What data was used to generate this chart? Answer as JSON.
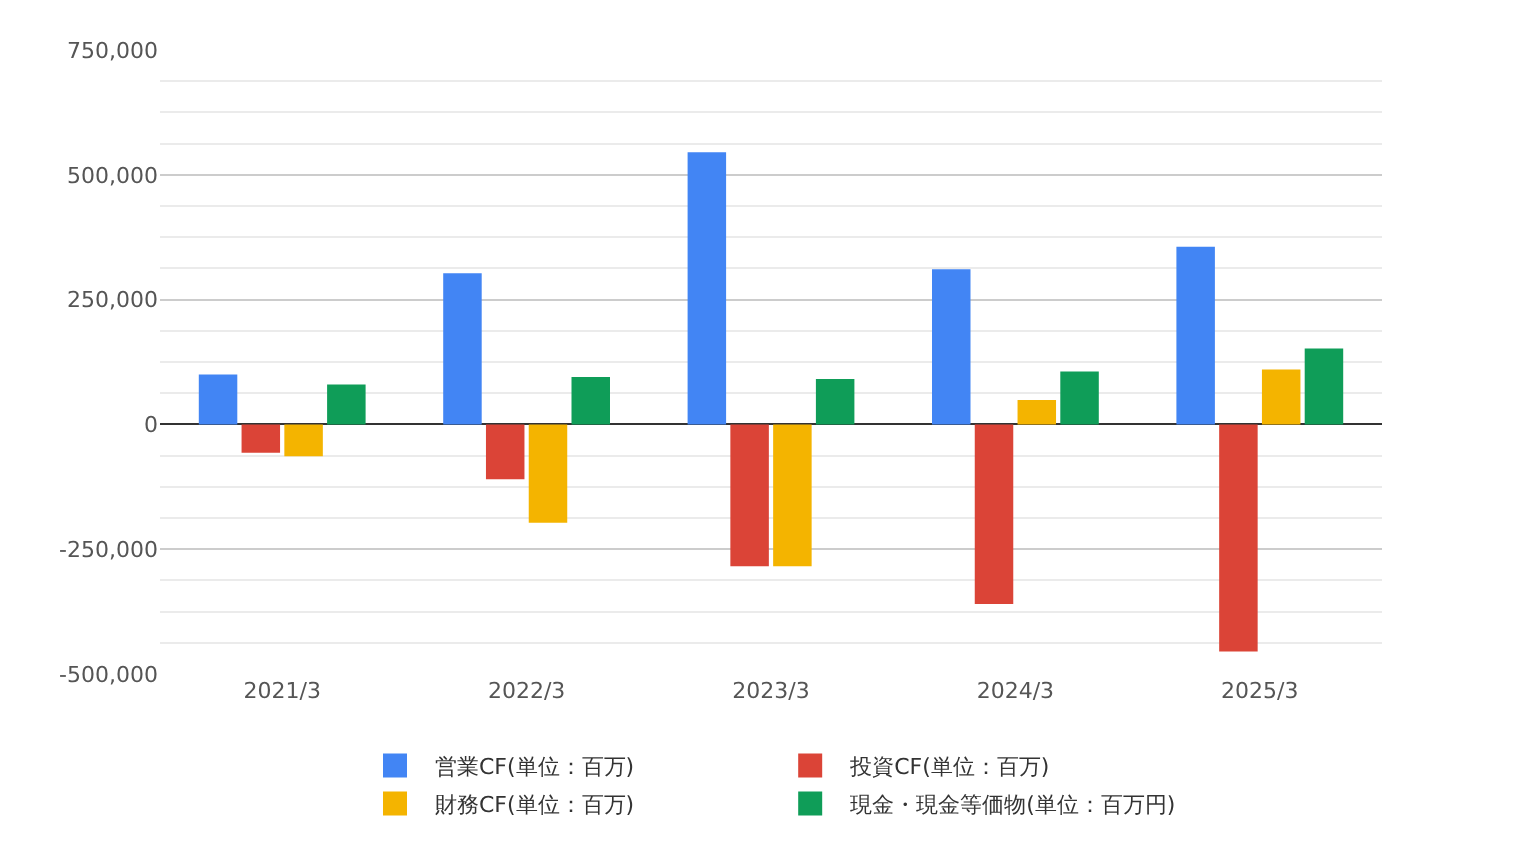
{
  "chart_data": {
    "type": "bar",
    "categories": [
      "2021/3",
      "2022/3",
      "2023/3",
      "2024/3",
      "2025/3"
    ],
    "series": [
      {
        "name": "営業CF(単位：百万)",
        "color": "#4285f4",
        "values": [
          100000,
          303000,
          545000,
          311000,
          356000
        ]
      },
      {
        "name": "投資CF(単位：百万)",
        "color": "#db4437",
        "values": [
          -57000,
          -110000,
          -284000,
          -360000,
          -455000
        ]
      },
      {
        "name": "財務CF(単位：百万)",
        "color": "#f4b400",
        "values": [
          -64000,
          -197000,
          -284000,
          49000,
          110000
        ]
      },
      {
        "name": "現金・現金等価物(単位：百万円)",
        "color": "#0f9d58",
        "values": [
          80000,
          95000,
          91000,
          106000,
          152000
        ]
      }
    ],
    "ylim": [
      -500000,
      750000
    ],
    "yticks": [
      {
        "value": -500000,
        "label": "-500,000"
      },
      {
        "value": -250000,
        "label": "-250,000"
      },
      0,
      {
        "value": 250000,
        "label": "250,000"
      },
      {
        "value": 500000,
        "label": "500,000"
      },
      {
        "value": 750000,
        "label": "750,000"
      }
    ],
    "grid": "y",
    "legend": "bottom"
  }
}
